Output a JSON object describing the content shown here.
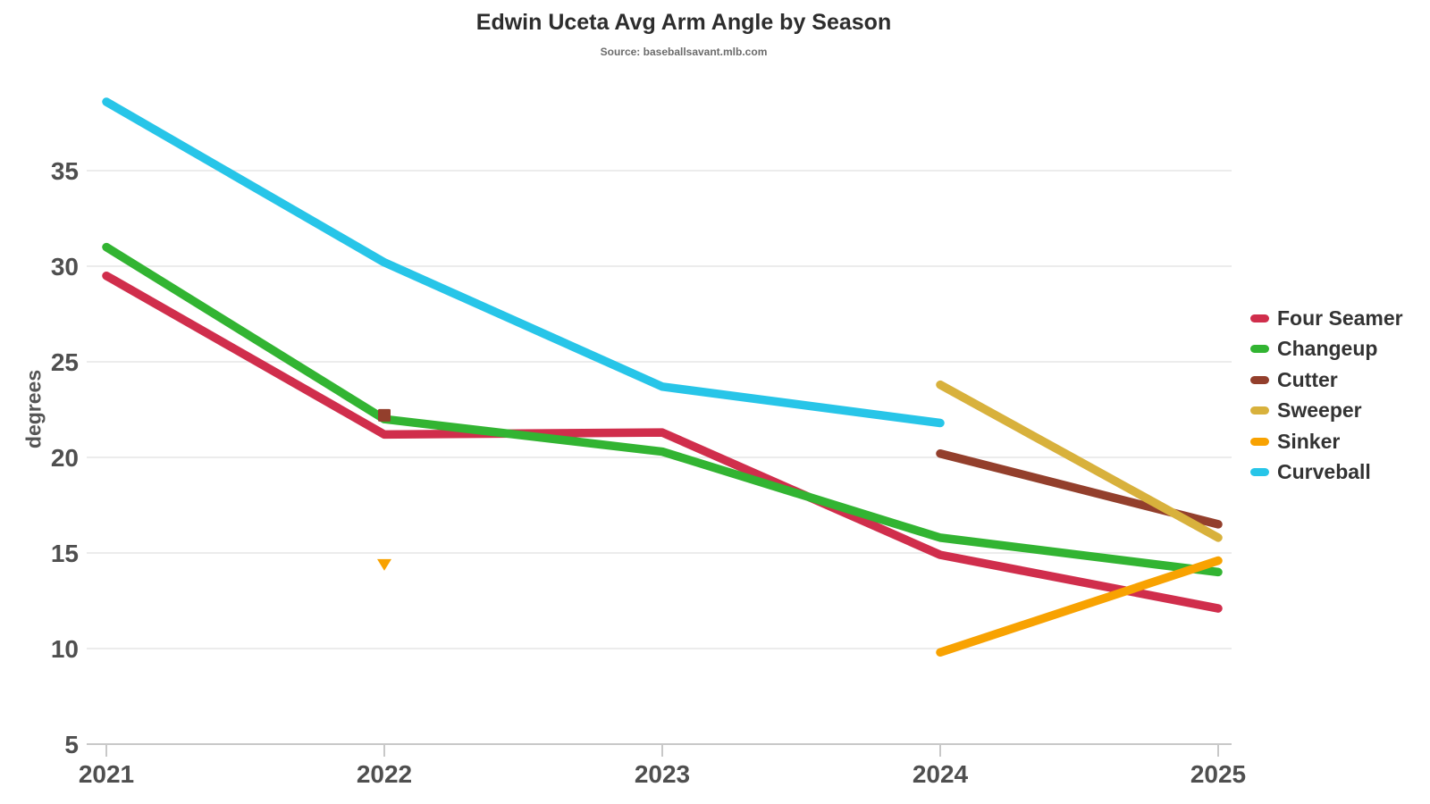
{
  "header": {
    "title": "Edwin Uceta Avg Arm Angle by Season",
    "subtitle": "Source: baseballsavant.mlb.com"
  },
  "chart_data": {
    "type": "line",
    "title": "Edwin Uceta Avg Arm Angle by Season",
    "subtitle": "Source: baseballsavant.mlb.com",
    "xlabel": "",
    "ylabel": "degrees",
    "x_categories": [
      "2021",
      "2022",
      "2023",
      "2024",
      "2025"
    ],
    "yticks": [
      5,
      10,
      15,
      20,
      25,
      30,
      35
    ],
    "ylim": [
      5,
      40
    ],
    "grid": "horizontal",
    "legend_position": "right",
    "axis_colors": {
      "gridline": "#ececec",
      "baseline": "#c8c8c8",
      "tick_label": "#4f4f4f"
    },
    "series": [
      {
        "name": "Four Seamer",
        "color": "#d02e4c",
        "points": {
          "2021": 29.5,
          "2022": 21.2,
          "2023": 21.3,
          "2024": 14.9,
          "2025": 12.1
        }
      },
      {
        "name": "Changeup",
        "color": "#32b432",
        "points": {
          "2021": 31.0,
          "2022": 22.0,
          "2023": 20.3,
          "2024": 15.8,
          "2025": 14.0
        }
      },
      {
        "name": "Cutter",
        "color": "#933f2c",
        "points": {
          "2022": 22.2,
          "2024": 20.2,
          "2025": 16.5
        },
        "isolated_markers": {
          "2022": "square"
        }
      },
      {
        "name": "Sweeper",
        "color": "#d8b13c",
        "points": {
          "2024": 23.8,
          "2025": 15.8
        }
      },
      {
        "name": "Sinker",
        "color": "#f8a201",
        "points": {
          "2022": 14.4,
          "2024": 9.8,
          "2025": 14.6
        },
        "isolated_markers": {
          "2022": "triangle-down"
        }
      },
      {
        "name": "Curveball",
        "color": "#27c5e8",
        "points": {
          "2021": 38.6,
          "2022": 30.2,
          "2023": 23.7,
          "2024": 21.8
        }
      }
    ]
  }
}
